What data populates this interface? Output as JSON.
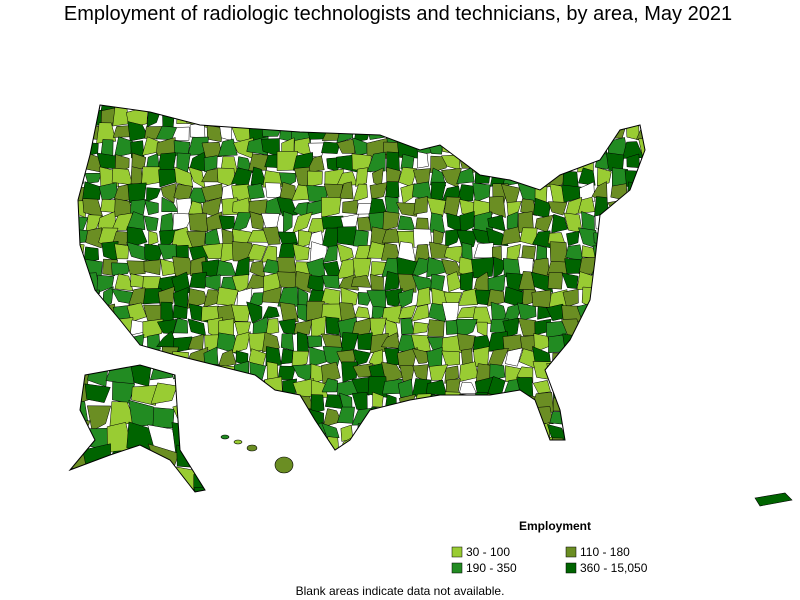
{
  "title": "Employment of radiologic technologists and technicians, by area, May 2021",
  "legend": {
    "title": "Employment",
    "items": [
      {
        "label": "30 - 100",
        "color": "#99cc33"
      },
      {
        "label": "110 - 180",
        "color": "#6b8e23"
      },
      {
        "label": "190 - 350",
        "color": "#228b22"
      },
      {
        "label": "360 - 15,050",
        "color": "#006400"
      }
    ]
  },
  "note": "Blank areas indicate data not available."
}
